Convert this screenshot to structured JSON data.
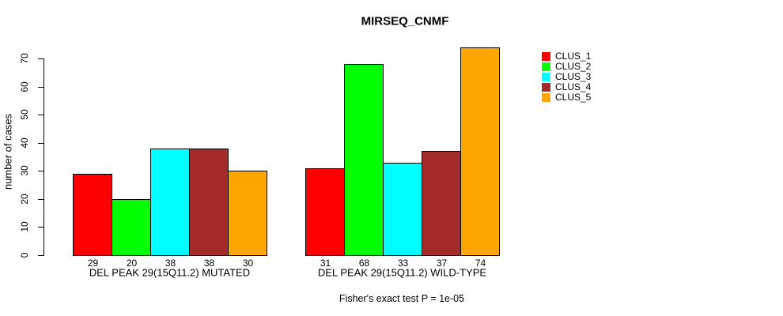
{
  "chart_data": {
    "type": "bar",
    "title": "MIRSEQ_CNMF",
    "ylabel": "number of cases",
    "xlabel": "",
    "ylim": [
      0,
      70
    ],
    "yticks": [
      0,
      10,
      20,
      30,
      40,
      50,
      60,
      70
    ],
    "grid": false,
    "legend_position": "right-outside",
    "categories": [
      "DEL PEAK 29(15Q11.2) MUTATED",
      "DEL PEAK 29(15Q11.2) WILD-TYPE"
    ],
    "series": [
      {
        "name": "CLUS_1",
        "color": "#FF0000",
        "values": [
          29,
          31
        ]
      },
      {
        "name": "CLUS_2",
        "color": "#00FF00",
        "values": [
          20,
          68
        ]
      },
      {
        "name": "CLUS_3",
        "color": "#00FFFF",
        "values": [
          38,
          33
        ]
      },
      {
        "name": "CLUS_4",
        "color": "#A52A2A",
        "values": [
          38,
          37
        ]
      },
      {
        "name": "CLUS_5",
        "color": "#FFA500",
        "values": [
          30,
          74
        ]
      }
    ],
    "show_value_labels": true,
    "annotation": "Fisher's exact test P = 1e-05",
    "colors": {
      "background": "#FFFFFF",
      "axis": "#000000",
      "text": "#000000",
      "bar_border": "#000000"
    }
  }
}
